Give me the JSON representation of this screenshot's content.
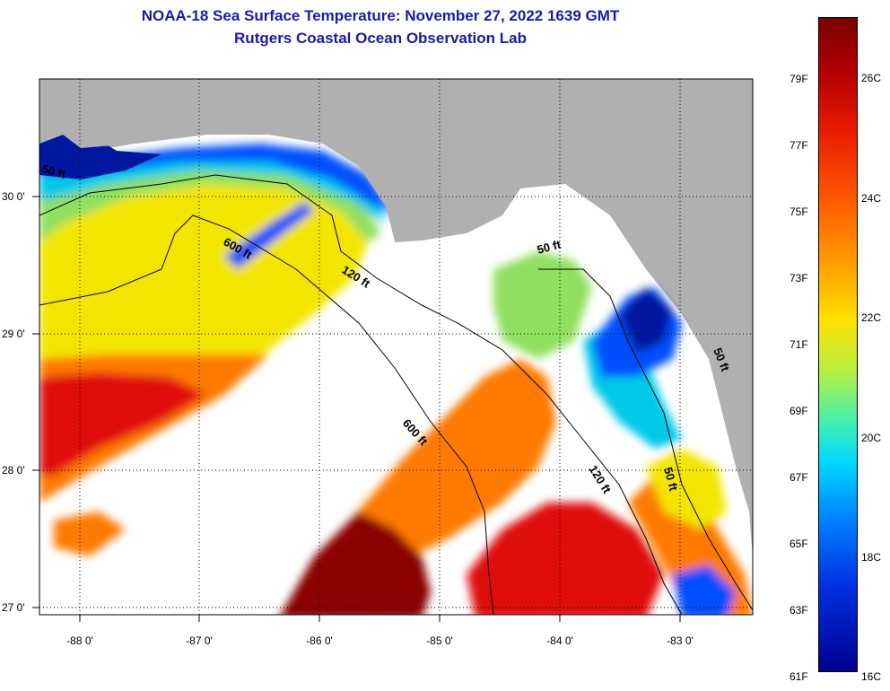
{
  "title": {
    "line1": "NOAA-18 Sea Surface Temperature:  November 27, 2022 1639 GMT",
    "line2": "Rutgers Coastal Ocean Observation Lab"
  },
  "map": {
    "lat_labels": [
      "30 0'",
      "29 0'",
      "28 0'",
      "27 0'"
    ],
    "lon_labels": [
      "-88 0'",
      "-87 0'",
      "-86 0'",
      "-85 0'",
      "-84 0'",
      "-83 0'"
    ],
    "isobath_labels": [
      "50 ft",
      "600 ft",
      "120 ft",
      "50 ft",
      "600 ft",
      "120 ft",
      "50 ft",
      "50 ft"
    ],
    "colors": {
      "land": "#b0b0b0",
      "cloud": "#ffffff",
      "dark_red": "#8b0000",
      "red": "#e01010",
      "orange": "#ff7a00",
      "yellow": "#f2e600",
      "green": "#90e060",
      "cyan": "#00c8e8",
      "blue": "#0050ff",
      "navy": "#0018a0"
    }
  },
  "colorbar": {
    "fahrenheit": [
      "79F",
      "77F",
      "75F",
      "73F",
      "71F",
      "69F",
      "67F",
      "65F",
      "63F",
      "61F"
    ],
    "celsius": [
      "26C",
      "24C",
      "22C",
      "20C",
      "18C",
      "16C"
    ]
  }
}
